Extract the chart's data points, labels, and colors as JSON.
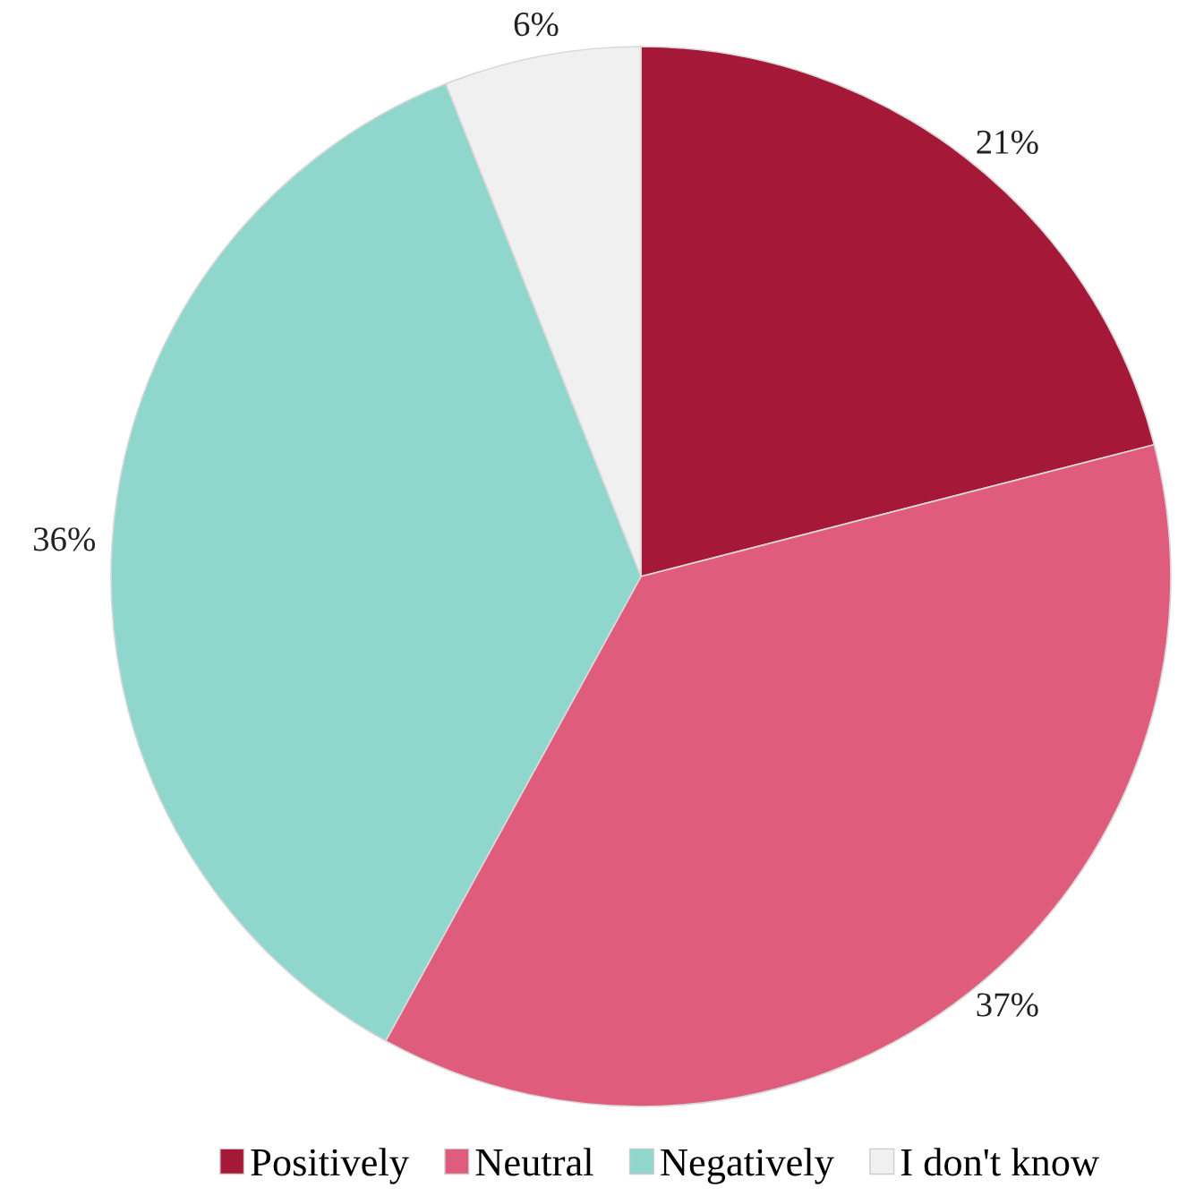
{
  "chart_data": {
    "type": "pie",
    "categories": [
      "Positively",
      "Neutral",
      "Negatively",
      "I don't know"
    ],
    "values": [
      21,
      37,
      36,
      6
    ],
    "colors": [
      "#a51837",
      "#e05c7c",
      "#8fd6cc",
      "#f0f0f0"
    ],
    "value_labels": [
      "21%",
      "37%",
      "36%",
      "6%"
    ],
    "legend": "bottom"
  }
}
